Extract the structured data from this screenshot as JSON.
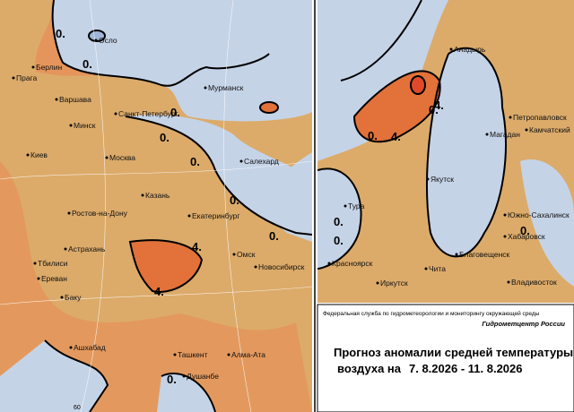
{
  "map": {
    "west_cities": [
      "Осло",
      "Берлин",
      "Прага",
      "Варшава",
      "Минск",
      "Санкт-Петербург",
      "Мурманск",
      "Киев",
      "Москва",
      "Салехард",
      "Казань",
      "Ростов-на-Дону",
      "Екатеринбург",
      "Астрахань",
      "Тбилиси",
      "Омск",
      "Новосибирск",
      "Ереван",
      "Баку",
      "Ашхабад",
      "Ташкент",
      "Алма-Ата",
      "Душанбе"
    ],
    "east_cities": [
      "Анадырь",
      "Петропавловск",
      "Камчатский",
      "Магадан",
      "Якутск",
      "Тура",
      "Южно-Сахалинск",
      "Хабаровск",
      "Благовещенск",
      "Красноярск",
      "Чита",
      "Иркутск",
      "Владивосток"
    ],
    "contour_labels": [
      "0.",
      "0.",
      "0.",
      "0.",
      "0.",
      "0.",
      "0.",
      "4.",
      "4.",
      "0.",
      "0.",
      "4.",
      "4.",
      "0.",
      "0.",
      "0.",
      "0."
    ],
    "grid_label": "60"
  },
  "footer": {
    "agency": "Федеральная служба по гидрометеорологии и мониторингу окружающей среды",
    "center": "Гидрометцентр России",
    "title_line1": "Прогноз аномалии средней температуры",
    "title_line2": "воздуха на",
    "dates": "7. 8.2026 - 11. 8.2026"
  }
}
